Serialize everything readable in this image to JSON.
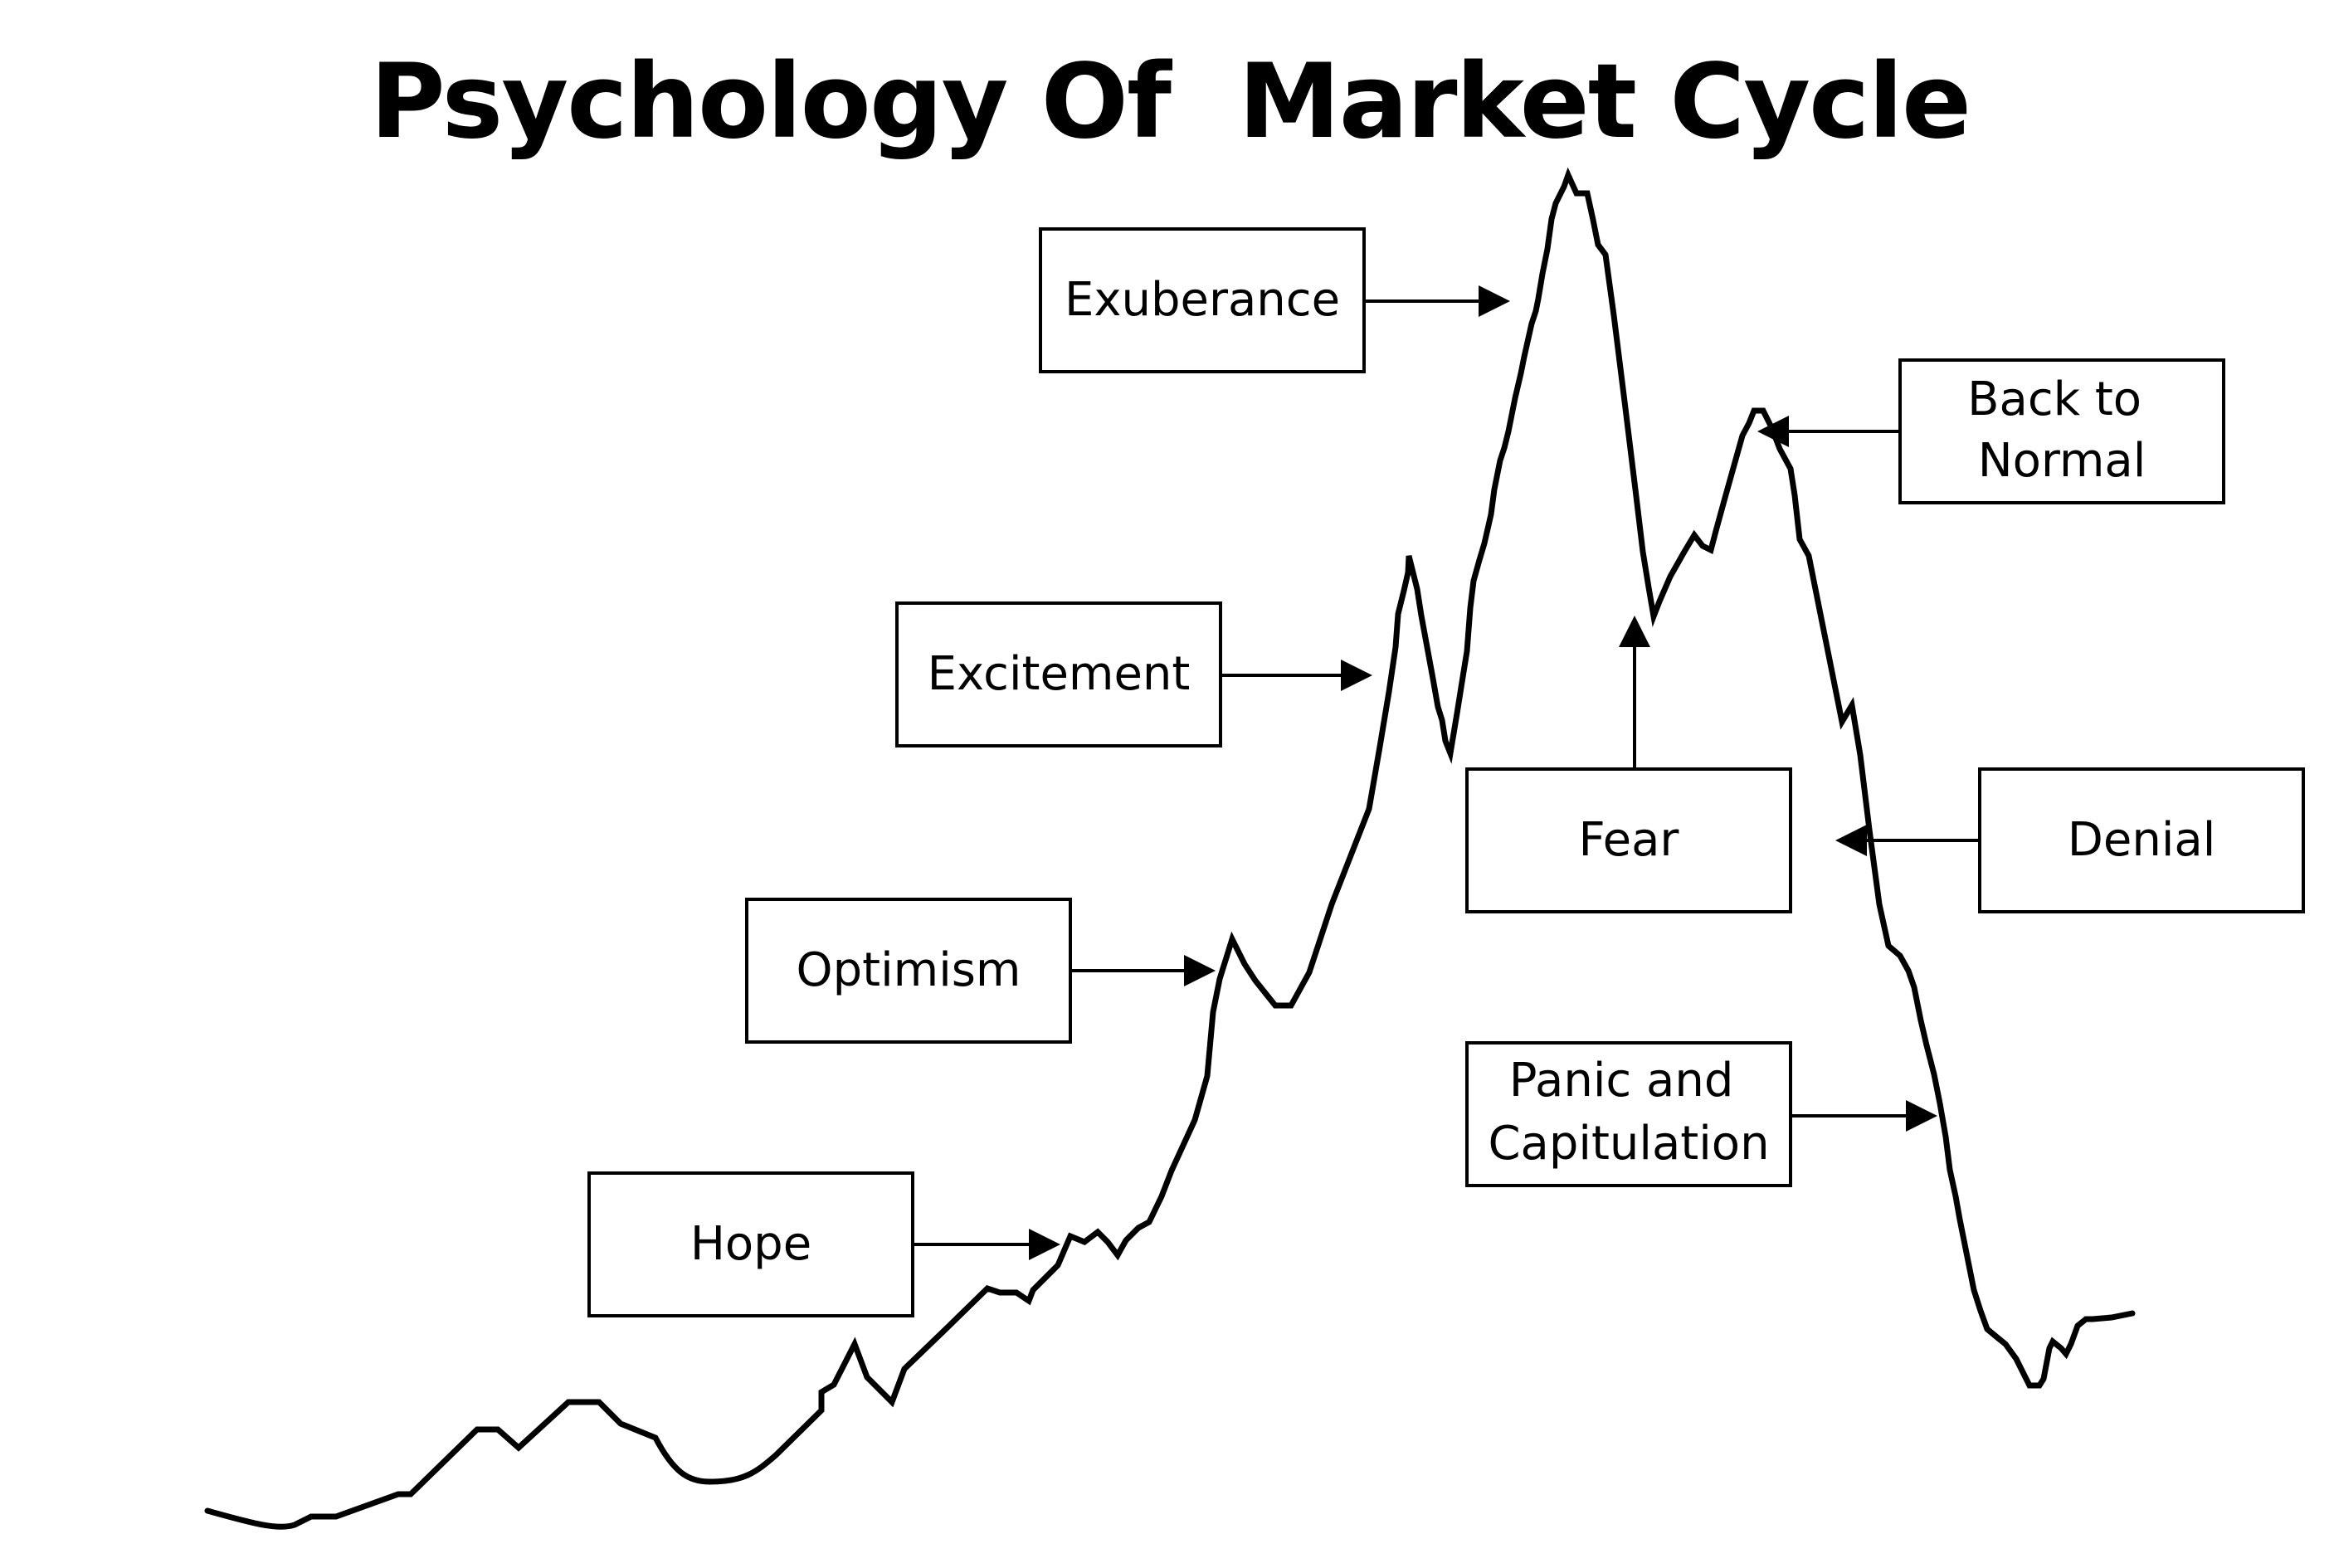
{
  "title": "Psychology Of  Market Cycle",
  "stages": {
    "hope": "Hope",
    "optimism": "Optimism",
    "excitement": "Excitement",
    "exuberance": "Exuberance",
    "fear": "Fear",
    "back_to_normal": [
      "Back to",
      "Normal"
    ],
    "denial": "Denial",
    "panic_and_capitulation": [
      "Panic and",
      "Capitulation"
    ]
  },
  "colors": {
    "line": "#000000",
    "background": "#ffffff"
  }
}
